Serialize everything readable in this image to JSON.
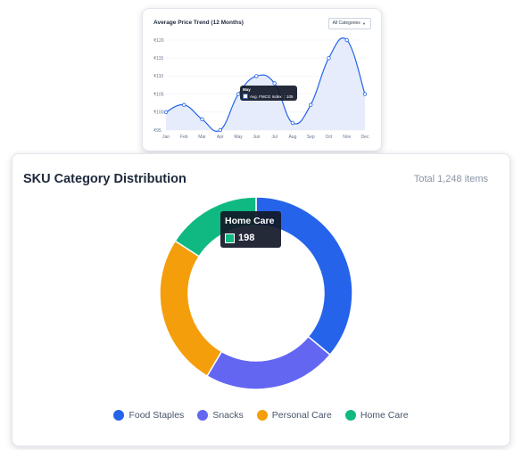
{
  "trend_card": {
    "title": "Average Price Trend (12 Months)",
    "filter": {
      "selected": "All Categories",
      "icon": "chevron-down-icon"
    }
  },
  "trend_tooltip": {
    "title": "May",
    "series_label": "Avg. FMCG Index",
    "value": "105"
  },
  "dist_card": {
    "title": "SKU Category Distribution",
    "total": "Total 1,248 items"
  },
  "donut_tooltip": {
    "title": "Home Care",
    "value": "198"
  },
  "colors": {
    "line": "#2563eb",
    "area": "#e6ecfb",
    "food_staples": "#2563eb",
    "snacks": "#6366f1",
    "personal_care": "#f59e0b",
    "home_care": "#10b981"
  },
  "chart_data": [
    {
      "type": "area",
      "title": "Average Price Trend (12 Months)",
      "categories": [
        "Jan",
        "Feb",
        "Mar",
        "Apr",
        "May",
        "Jun",
        "Jul",
        "Aug",
        "Sep",
        "Oct",
        "Nov",
        "Dec"
      ],
      "series": [
        {
          "name": "Avg. FMCG Index",
          "values": [
            100,
            102,
            98,
            95,
            105,
            110,
            108,
            97,
            102,
            115,
            120,
            105
          ]
        }
      ],
      "ylim": [
        95,
        120
      ],
      "yticks": [
        "₹95",
        "₹100",
        "₹105",
        "₹110",
        "₹115",
        "₹120"
      ],
      "grid": true
    },
    {
      "type": "pie",
      "title": "SKU Category Distribution",
      "categories": [
        "Food Staples",
        "Snacks",
        "Personal Care",
        "Home Care"
      ],
      "values": [
        450,
        280,
        320,
        198
      ],
      "legend": "bottom"
    }
  ]
}
